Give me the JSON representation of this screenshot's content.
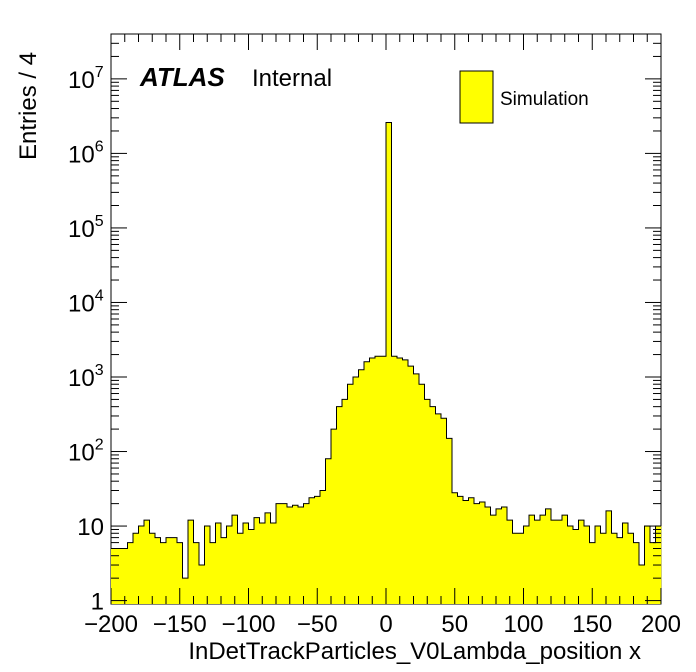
{
  "chart_data": {
    "type": "bar",
    "subtype": "histogram",
    "xlabel": "InDetTrackParticles_V0Lambda_position x",
    "ylabel": "Entries / 4",
    "xlim": [
      -200,
      200
    ],
    "ylim": [
      0.9,
      40000000
    ],
    "yscale": "log",
    "bin_width": 4,
    "fill_color": "#ffff00",
    "line_color": "#000000",
    "x_ticks": [
      "−200",
      "−150",
      "−100",
      "−50",
      "0",
      "50",
      "100",
      "150",
      "200"
    ],
    "y_ticks": [
      {
        "base": "1",
        "exp": ""
      },
      {
        "base": "10",
        "exp": ""
      },
      {
        "base": "10",
        "exp": "2"
      },
      {
        "base": "10",
        "exp": "3"
      },
      {
        "base": "10",
        "exp": "4"
      },
      {
        "base": "10",
        "exp": "5"
      },
      {
        "base": "10",
        "exp": "6"
      },
      {
        "base": "10",
        "exp": "7"
      }
    ],
    "atlas_label": "ATLAS",
    "atlas_sublabel": "Internal",
    "legend": [
      "Simulation"
    ],
    "bins_x": [
      -200,
      -196,
      -192,
      -188,
      -184,
      -180,
      -176,
      -172,
      -168,
      -164,
      -160,
      -156,
      -152,
      -148,
      -144,
      -140,
      -136,
      -132,
      -128,
      -124,
      -120,
      -116,
      -112,
      -108,
      -104,
      -100,
      -96,
      -92,
      -88,
      -84,
      -80,
      -76,
      -72,
      -68,
      -64,
      -60,
      -56,
      -52,
      -48,
      -44,
      -40,
      -36,
      -32,
      -28,
      -24,
      -20,
      -16,
      -12,
      -8,
      -4,
      0,
      4,
      8,
      12,
      16,
      20,
      24,
      28,
      32,
      36,
      40,
      44,
      48,
      52,
      56,
      60,
      64,
      68,
      72,
      76,
      80,
      84,
      88,
      92,
      96,
      100,
      104,
      108,
      112,
      116,
      120,
      124,
      128,
      132,
      136,
      140,
      144,
      148,
      152,
      156,
      160,
      164,
      168,
      172,
      176,
      180,
      184,
      188,
      192,
      196
    ],
    "values": [
      5,
      5,
      5,
      6,
      8,
      10,
      12,
      8,
      7,
      6,
      7,
      7,
      6,
      2,
      12,
      6,
      3,
      10,
      6,
      11,
      7,
      10,
      14,
      8,
      11,
      9,
      13,
      11,
      15,
      11,
      20,
      20,
      18,
      19,
      18,
      20,
      24,
      25,
      30,
      80,
      200,
      400,
      500,
      800,
      1000,
      1250,
      1600,
      1800,
      1900,
      1900,
      2600000,
      1900,
      1800,
      1700,
      1400,
      1100,
      800,
      500,
      400,
      320,
      280,
      150,
      28,
      25,
      22,
      24,
      20,
      21,
      18,
      14,
      17,
      18,
      12,
      8,
      8,
      10,
      14,
      12,
      14,
      17,
      12,
      12,
      14,
      10,
      9,
      12,
      10,
      6,
      10,
      8,
      16,
      8,
      7,
      11,
      8,
      6,
      3,
      10,
      6,
      10
    ]
  }
}
